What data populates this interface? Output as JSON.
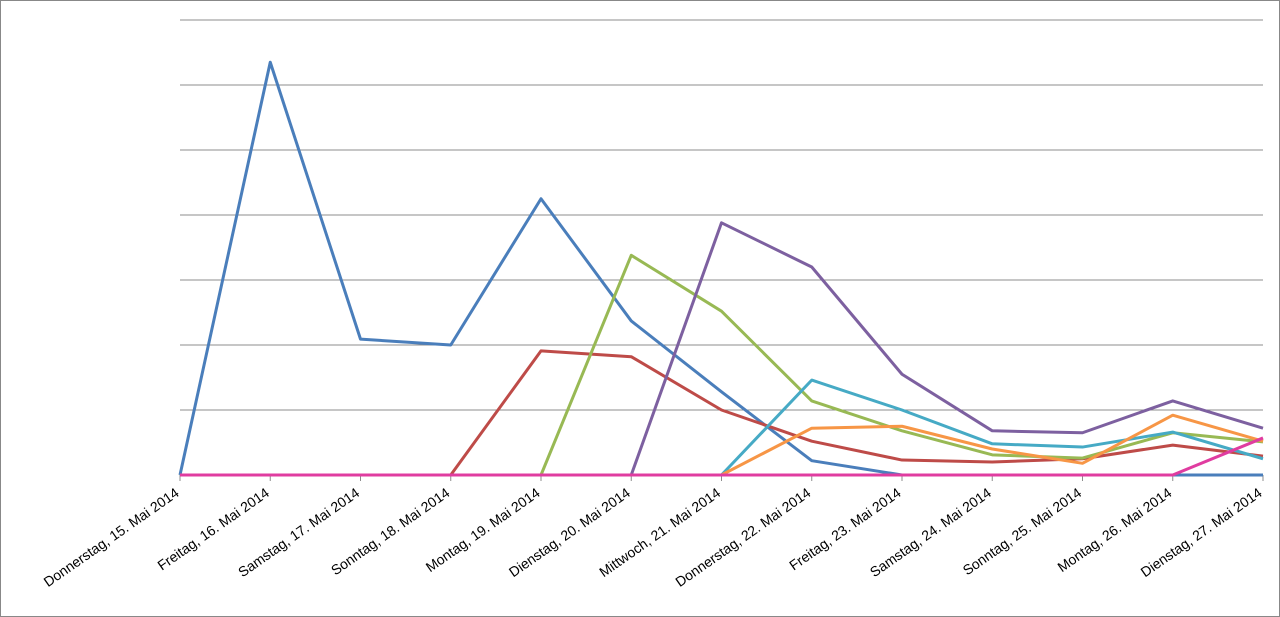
{
  "chart_data": {
    "type": "line",
    "categories": [
      "Donnerstag, 15. Mai 2014",
      "Freitag, 16. Mai 2014",
      "Samstag, 17. Mai 2014",
      "Sonntag, 18. Mai 2014",
      "Montag, 19. Mai 2014",
      "Dienstag, 20. Mai 2014",
      "Mittwoch, 21. Mai 2014",
      "Donnerstag, 22. Mai 2014",
      "Freitag, 23. Mai 2014",
      "Samstag, 24. Mai 2014",
      "Sonntag, 25. Mai 2014",
      "Montag, 26. Mai 2014",
      "Dienstag, 27. Mai 2014"
    ],
    "series": [
      {
        "color": "#4a7ebb",
        "values": [
          0,
          6.35,
          2.09,
          2.0,
          4.25,
          2.37,
          1.28,
          0.22,
          0,
          0,
          0,
          0,
          0
        ]
      },
      {
        "color": "#be4b48",
        "values": [
          null,
          null,
          null,
          0,
          1.91,
          1.82,
          1.0,
          0.52,
          0.23,
          0.2,
          0.25,
          0.46,
          0.29
        ]
      },
      {
        "color": "#98b954",
        "values": [
          null,
          null,
          null,
          null,
          0,
          3.38,
          2.52,
          1.14,
          0.68,
          0.31,
          0.26,
          0.65,
          0.51
        ]
      },
      {
        "color": "#7d60a0",
        "values": [
          null,
          null,
          null,
          null,
          null,
          0,
          3.88,
          3.2,
          1.55,
          0.68,
          0.65,
          1.14,
          0.72
        ]
      },
      {
        "color": "#46aac5",
        "values": [
          null,
          null,
          null,
          null,
          null,
          null,
          0,
          1.46,
          1.0,
          0.48,
          0.43,
          0.66,
          0.25
        ]
      },
      {
        "color": "#f79646",
        "values": [
          null,
          null,
          null,
          null,
          null,
          null,
          0,
          0.72,
          0.75,
          0.4,
          0.18,
          0.92,
          0.52
        ]
      },
      {
        "color": "#e03ca0",
        "values": [
          0,
          0,
          0,
          0,
          0,
          0,
          0,
          0,
          0,
          0,
          0,
          0,
          0.57
        ]
      }
    ],
    "ylim": [
      0,
      7
    ],
    "yticks": [
      0,
      1,
      2,
      3,
      4,
      5,
      6,
      7
    ],
    "grid": true,
    "show_ytick_labels": false
  }
}
